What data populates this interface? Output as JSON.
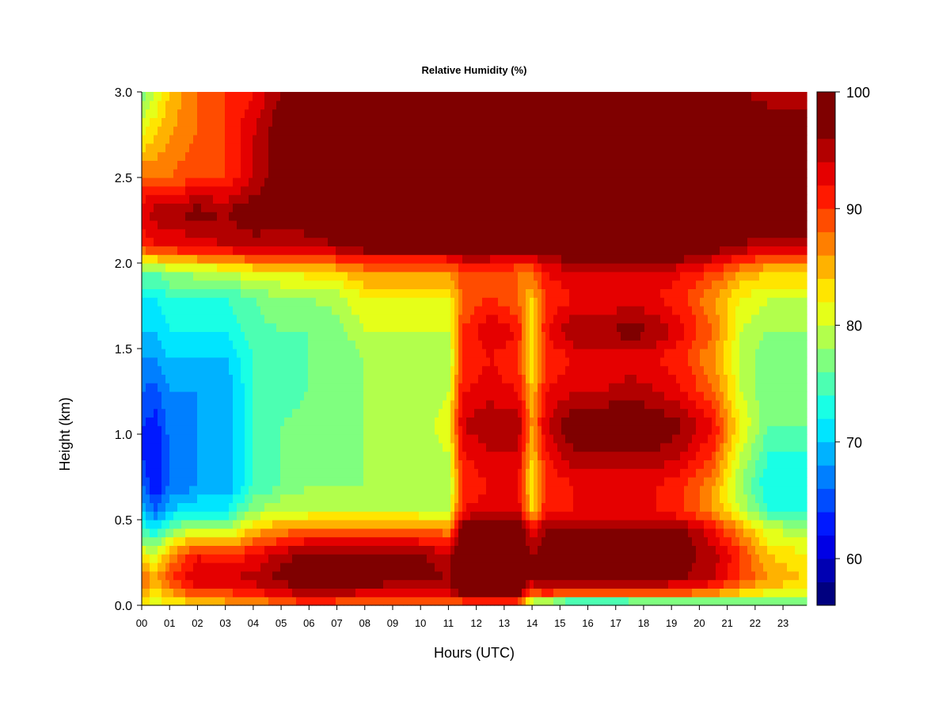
{
  "chart_data": {
    "type": "heatmap",
    "title": "Relative Humidity (%)",
    "xlabel": "Hours (UTC)",
    "ylabel": "Height (km)",
    "x_ticks": [
      "00",
      "01",
      "02",
      "03",
      "04",
      "05",
      "06",
      "07",
      "08",
      "09",
      "10",
      "11",
      "12",
      "13",
      "14",
      "15",
      "16",
      "17",
      "18",
      "19",
      "20",
      "21",
      "22",
      "23"
    ],
    "y_ticks": [
      "0.0",
      "0.5",
      "1.0",
      "1.5",
      "2.0",
      "2.5",
      "3.0"
    ],
    "xlim": [
      0,
      23.85
    ],
    "ylim": [
      0,
      3.0
    ],
    "colorbar": {
      "ticks": [
        "60",
        "70",
        "80",
        "90",
        "100"
      ],
      "range": [
        56,
        100
      ],
      "levels": 22,
      "palette": [
        "#00007f",
        "#0000b2",
        "#0000e5",
        "#0019ff",
        "#004cff",
        "#007fff",
        "#00b2ff",
        "#00e5ff",
        "#19ffe5",
        "#4cffb2",
        "#7fff7f",
        "#b2ff4c",
        "#e5ff19",
        "#ffe500",
        "#ffb200",
        "#ff7f00",
        "#ff4c00",
        "#ff1900",
        "#e50000",
        "#b20000",
        "#7f0000",
        "#7f0000"
      ]
    },
    "heights_km": [
      0.0,
      0.05,
      0.15,
      0.3,
      0.45,
      0.55,
      0.7,
      0.9,
      1.05,
      1.25,
      1.45,
      1.6,
      1.8,
      1.95,
      2.1,
      2.3,
      2.5,
      2.75,
      3.0
    ],
    "profiles": [
      {
        "hour": 0.0,
        "rh": [
          82,
          84,
          88,
          82,
          74,
          70,
          66,
          64,
          64,
          66,
          68,
          70,
          72,
          76,
          90,
          94,
          88,
          82,
          76
        ]
      },
      {
        "hour": 0.5,
        "rh": [
          80,
          82,
          86,
          80,
          72,
          66,
          62,
          62,
          63,
          65,
          68,
          70,
          72,
          76,
          92,
          95,
          88,
          84,
          80
        ]
      },
      {
        "hour": 1.0,
        "rh": [
          82,
          84,
          90,
          86,
          76,
          70,
          66,
          66,
          67,
          68,
          70,
          72,
          74,
          78,
          92,
          96,
          88,
          86,
          84
        ]
      },
      {
        "hour": 2.0,
        "rh": [
          82,
          88,
          94,
          92,
          80,
          72,
          68,
          68,
          68,
          68,
          70,
          72,
          74,
          79,
          93,
          97,
          90,
          88,
          88
        ]
      },
      {
        "hour": 3.0,
        "rh": [
          84,
          88,
          94,
          90,
          78,
          72,
          68,
          68,
          68,
          68,
          70,
          72,
          74,
          80,
          94,
          96,
          90,
          90,
          90
        ]
      },
      {
        "hour": 4.0,
        "rh": [
          84,
          90,
          95,
          92,
          84,
          78,
          74,
          74,
          74,
          74,
          74,
          75,
          76,
          82,
          95,
          98,
          94,
          94,
          92
        ]
      },
      {
        "hour": 5.0,
        "rh": [
          86,
          92,
          97,
          95,
          86,
          80,
          76,
          76,
          76,
          75,
          75,
          76,
          78,
          82,
          94,
          98,
          98,
          98,
          96
        ]
      },
      {
        "hour": 6.0,
        "rh": [
          88,
          94,
          98,
          97,
          88,
          80,
          78,
          77,
          77,
          76,
          76,
          76,
          78,
          83,
          95,
          98,
          98,
          98,
          97
        ]
      },
      {
        "hour": 7.0,
        "rh": [
          86,
          94,
          98,
          97,
          88,
          80,
          78,
          77,
          76,
          76,
          76,
          77,
          79,
          84,
          96,
          98,
          98,
          98,
          96
        ]
      },
      {
        "hour": 8.0,
        "rh": [
          86,
          92,
          98,
          97,
          88,
          80,
          78,
          78,
          78,
          78,
          78,
          80,
          82,
          86,
          98,
          100,
          100,
          100,
          98
        ]
      },
      {
        "hour": 9.0,
        "rh": [
          86,
          92,
          97,
          96,
          88,
          80,
          78,
          78,
          78,
          78,
          78,
          80,
          82,
          86,
          98,
          100,
          100,
          100,
          98
        ]
      },
      {
        "hour": 10.0,
        "rh": [
          86,
          92,
          97,
          96,
          88,
          80,
          78,
          78,
          78,
          78,
          78,
          80,
          82,
          86,
          98,
          100,
          100,
          100,
          98
        ]
      },
      {
        "hour": 11.0,
        "rh": [
          84,
          92,
          96,
          95,
          86,
          80,
          78,
          80,
          82,
          80,
          78,
          80,
          82,
          86,
          98,
          100,
          100,
          100,
          98
        ]
      },
      {
        "hour": 11.5,
        "rh": [
          84,
          96,
          100,
          100,
          98,
          92,
          90,
          92,
          94,
          92,
          90,
          90,
          88,
          90,
          98,
          100,
          100,
          100,
          98
        ]
      },
      {
        "hour": 12.5,
        "rh": [
          86,
          98,
          100,
          100,
          100,
          94,
          92,
          94,
          96,
          93,
          92,
          94,
          90,
          90,
          98,
          100,
          100,
          100,
          98
        ]
      },
      {
        "hour": 13.5,
        "rh": [
          84,
          96,
          100,
          100,
          100,
          94,
          92,
          94,
          96,
          92,
          90,
          92,
          88,
          88,
          98,
          100,
          100,
          100,
          98
        ]
      },
      {
        "hour": 14.0,
        "rh": [
          74,
          86,
          96,
          96,
          92,
          84,
          82,
          84,
          86,
          84,
          82,
          82,
          84,
          88,
          98,
          100,
          100,
          100,
          98
        ]
      },
      {
        "hour": 14.5,
        "rh": [
          70,
          88,
          98,
          98,
          96,
          92,
          90,
          92,
          94,
          92,
          90,
          92,
          90,
          92,
          98,
          100,
          100,
          100,
          98
        ]
      },
      {
        "hour": 15.5,
        "rh": [
          64,
          86,
          98,
          98,
          97,
          92,
          92,
          96,
          98,
          94,
          92,
          96,
          92,
          94,
          100,
          100,
          100,
          100,
          98
        ]
      },
      {
        "hour": 16.5,
        "rh": [
          64,
          86,
          98,
          98,
          97,
          92,
          92,
          96,
          99,
          94,
          92,
          96,
          92,
          94,
          100,
          100,
          100,
          100,
          98
        ]
      },
      {
        "hour": 17.5,
        "rh": [
          66,
          86,
          97,
          98,
          97,
          92,
          92,
          96,
          99,
          95,
          93,
          97,
          93,
          94,
          100,
          100,
          100,
          100,
          98
        ]
      },
      {
        "hour": 18.5,
        "rh": [
          66,
          86,
          97,
          98,
          97,
          92,
          92,
          96,
          98,
          94,
          92,
          96,
          92,
          94,
          100,
          100,
          100,
          100,
          98
        ]
      },
      {
        "hour": 19.5,
        "rh": [
          66,
          86,
          96,
          97,
          96,
          90,
          90,
          94,
          96,
          92,
          90,
          92,
          90,
          92,
          100,
          100,
          100,
          100,
          98
        ]
      },
      {
        "hour": 20.5,
        "rh": [
          70,
          84,
          94,
          95,
          92,
          86,
          86,
          90,
          92,
          88,
          86,
          88,
          86,
          90,
          98,
          100,
          100,
          100,
          97
        ]
      },
      {
        "hour": 21.5,
        "rh": [
          72,
          82,
          90,
          90,
          86,
          80,
          78,
          80,
          82,
          80,
          80,
          80,
          82,
          86,
          96,
          100,
          100,
          100,
          96
        ]
      },
      {
        "hour": 22.5,
        "rh": [
          72,
          80,
          86,
          84,
          80,
          74,
          72,
          74,
          76,
          76,
          76,
          78,
          80,
          84,
          94,
          100,
          100,
          98,
          95
        ]
      },
      {
        "hour": 23.85,
        "rh": [
          72,
          80,
          84,
          82,
          78,
          74,
          72,
          74,
          76,
          76,
          76,
          78,
          80,
          84,
          94,
          100,
          100,
          98,
          94
        ]
      }
    ]
  }
}
